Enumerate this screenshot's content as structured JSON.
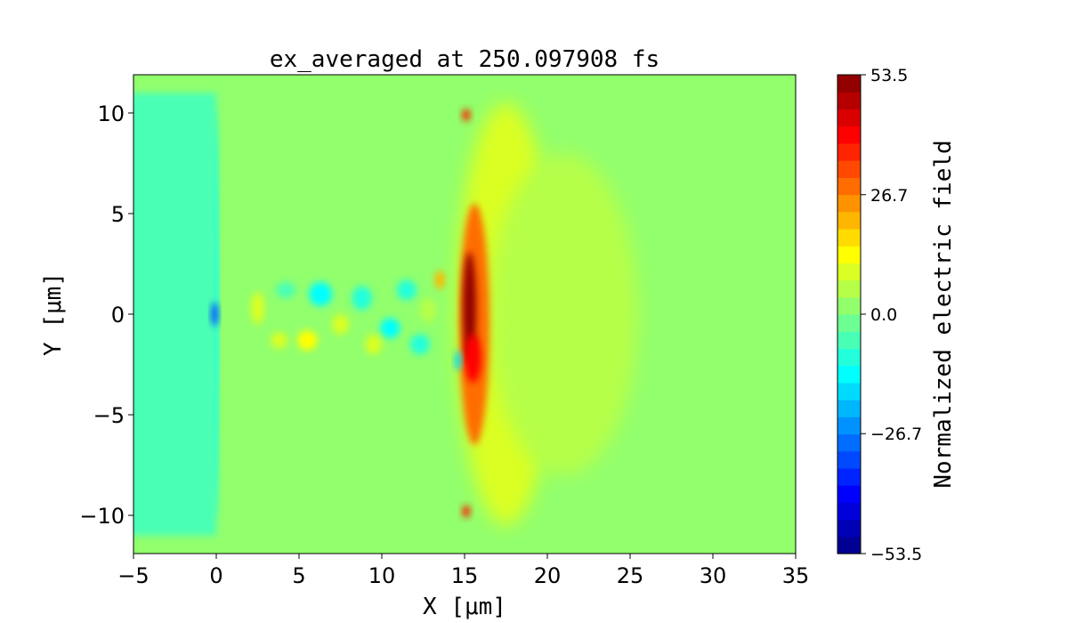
{
  "chart_data": {
    "type": "heatmap",
    "title": "ex_averaged at 250.097908 fs",
    "xlabel": "X [μm]",
    "ylabel": "Y [μm]",
    "xlim": [
      -5,
      35
    ],
    "ylim": [
      -11.9,
      11.9
    ],
    "xticks": [
      -5,
      0,
      5,
      10,
      15,
      20,
      25,
      30,
      35
    ],
    "xtick_labels": [
      "−5",
      "0",
      "5",
      "10",
      "15",
      "20",
      "25",
      "30",
      "35"
    ],
    "yticks": [
      -10,
      -5,
      0,
      5,
      10
    ],
    "ytick_labels": [
      "−10",
      "−5",
      "0",
      "5",
      "10"
    ],
    "colormap": "jet",
    "colorbar": {
      "label": "Normalized electric field",
      "clim": [
        -53.5,
        53.5
      ],
      "levels": 28,
      "ticks": [
        -53.5,
        -26.7,
        0.0,
        26.7,
        53.5
      ],
      "tick_labels": [
        "−53.5",
        "−26.7",
        "0.0",
        "26.7",
        "53.5"
      ]
    },
    "background_value": 0,
    "features": [
      {
        "name": "left-region",
        "x": [
          -5,
          0
        ],
        "y": [
          -11,
          11
        ],
        "value": -6
      },
      {
        "name": "front-glow",
        "cx": 17.5,
        "cy": 0,
        "rx": 3,
        "ry": 10.5,
        "value": 10
      },
      {
        "name": "outer-glow",
        "cx": 21,
        "cy": 0,
        "rx": 4.5,
        "ry": 8,
        "value": 4
      },
      {
        "name": "front-orange",
        "cx": 15.6,
        "cy": -0.5,
        "rx": 0.9,
        "ry": 6,
        "value": 28
      },
      {
        "name": "front-red",
        "cx": 15.3,
        "cy": 0.3,
        "rx": 0.4,
        "ry": 2.8,
        "value": 50
      },
      {
        "name": "front-red-lower",
        "cx": 15.5,
        "cy": -2.2,
        "rx": 0.5,
        "ry": 1.2,
        "value": 42
      },
      {
        "name": "front-tip-top",
        "cx": 15.1,
        "cy": 9.9,
        "rx": 0.25,
        "ry": 0.3,
        "value": 35
      },
      {
        "name": "front-tip-bottom",
        "cx": 15.1,
        "cy": -9.8,
        "rx": 0.25,
        "ry": 0.3,
        "value": 35
      },
      {
        "name": "rear-line",
        "cx": 0,
        "cy": 0,
        "rx": 0.12,
        "ry": 10.2,
        "value": -14
      },
      {
        "name": "rear-blue-spot",
        "cx": -0.1,
        "cy": 0,
        "rx": 0.2,
        "ry": 0.6,
        "value": -32
      },
      {
        "name": "front-cyan-edge-low",
        "cx": 14.6,
        "cy": -2.3,
        "rx": 0.2,
        "ry": 0.5,
        "value": -18
      },
      {
        "name": "blob",
        "cx": 2.5,
        "cy": 0.3,
        "rx": 0.4,
        "ry": 0.8,
        "value": 10
      },
      {
        "name": "blob",
        "cx": 4.2,
        "cy": 1.2,
        "rx": 0.6,
        "ry": 0.4,
        "value": -6
      },
      {
        "name": "blob",
        "cx": 5.5,
        "cy": -1.3,
        "rx": 0.6,
        "ry": 0.5,
        "value": 14
      },
      {
        "name": "blob",
        "cx": 6.3,
        "cy": 1.0,
        "rx": 0.7,
        "ry": 0.6,
        "value": -12
      },
      {
        "name": "blob",
        "cx": 7.5,
        "cy": -0.5,
        "rx": 0.5,
        "ry": 0.5,
        "value": 8
      },
      {
        "name": "blob",
        "cx": 8.8,
        "cy": 0.8,
        "rx": 0.6,
        "ry": 0.6,
        "value": -10
      },
      {
        "name": "blob",
        "cx": 10.5,
        "cy": -0.7,
        "rx": 0.6,
        "ry": 0.5,
        "value": -12
      },
      {
        "name": "blob",
        "cx": 11.5,
        "cy": 1.2,
        "rx": 0.6,
        "ry": 0.5,
        "value": -9
      },
      {
        "name": "blob",
        "cx": 12.3,
        "cy": -1.5,
        "rx": 0.6,
        "ry": 0.5,
        "value": -8
      },
      {
        "name": "blob",
        "cx": 13.5,
        "cy": 1.7,
        "rx": 0.3,
        "ry": 0.45,
        "value": 22
      },
      {
        "name": "blob",
        "cx": 3.8,
        "cy": -1.3,
        "rx": 0.5,
        "ry": 0.4,
        "value": 8
      },
      {
        "name": "blob",
        "cx": 9.5,
        "cy": -1.5,
        "rx": 0.5,
        "ry": 0.5,
        "value": 8
      },
      {
        "name": "blob",
        "cx": 12.8,
        "cy": 0.2,
        "rx": 0.5,
        "ry": 0.6,
        "value": 7
      }
    ]
  }
}
